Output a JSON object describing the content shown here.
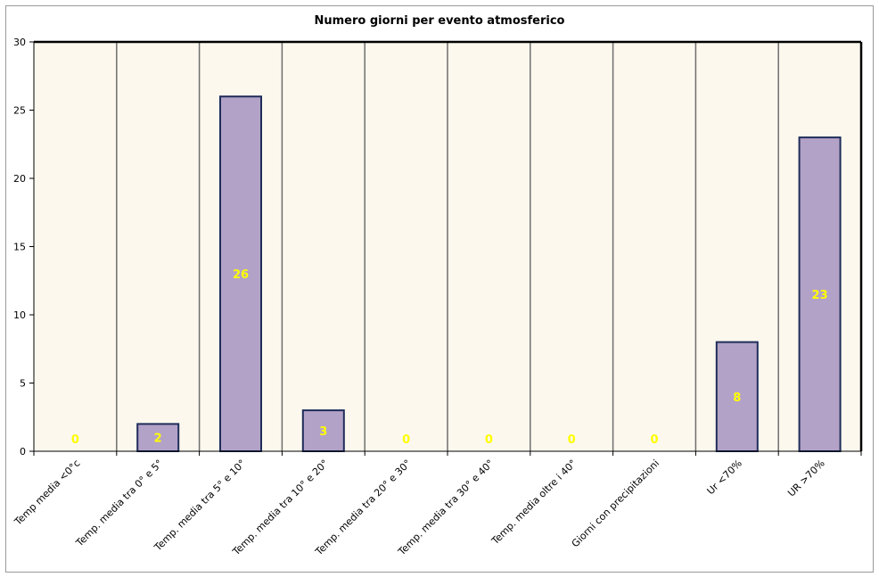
{
  "chart_data": {
    "type": "bar",
    "title": "Numero giorni per evento atmosferico",
    "xlabel": "",
    "ylabel": "",
    "ylim": [
      0,
      30
    ],
    "yticks": [
      0,
      5,
      10,
      15,
      20,
      25,
      30
    ],
    "grid": "vertical",
    "categories": [
      "Temp media <0°c",
      "Temp. media tra 0° e 5°",
      "Temp. media tra 5° e 10°",
      "Temp. media tra 10° e 20°",
      "Temp. media tra 20° e 30°",
      "Temp. media tra 30° e 40°",
      "Temp. media oltre i 40°",
      "Giorni con precipitazioni",
      "Ur <70%",
      "UR >70%"
    ],
    "values": [
      0,
      2,
      26,
      3,
      0,
      0,
      0,
      0,
      8,
      23
    ],
    "colors": {
      "bar_fill": "#b3a2c7",
      "bar_stroke": "#1f2d5a",
      "plot_bg": "#fcf8ee",
      "grid": "#6e6e6e",
      "label": "#ffff00"
    }
  }
}
